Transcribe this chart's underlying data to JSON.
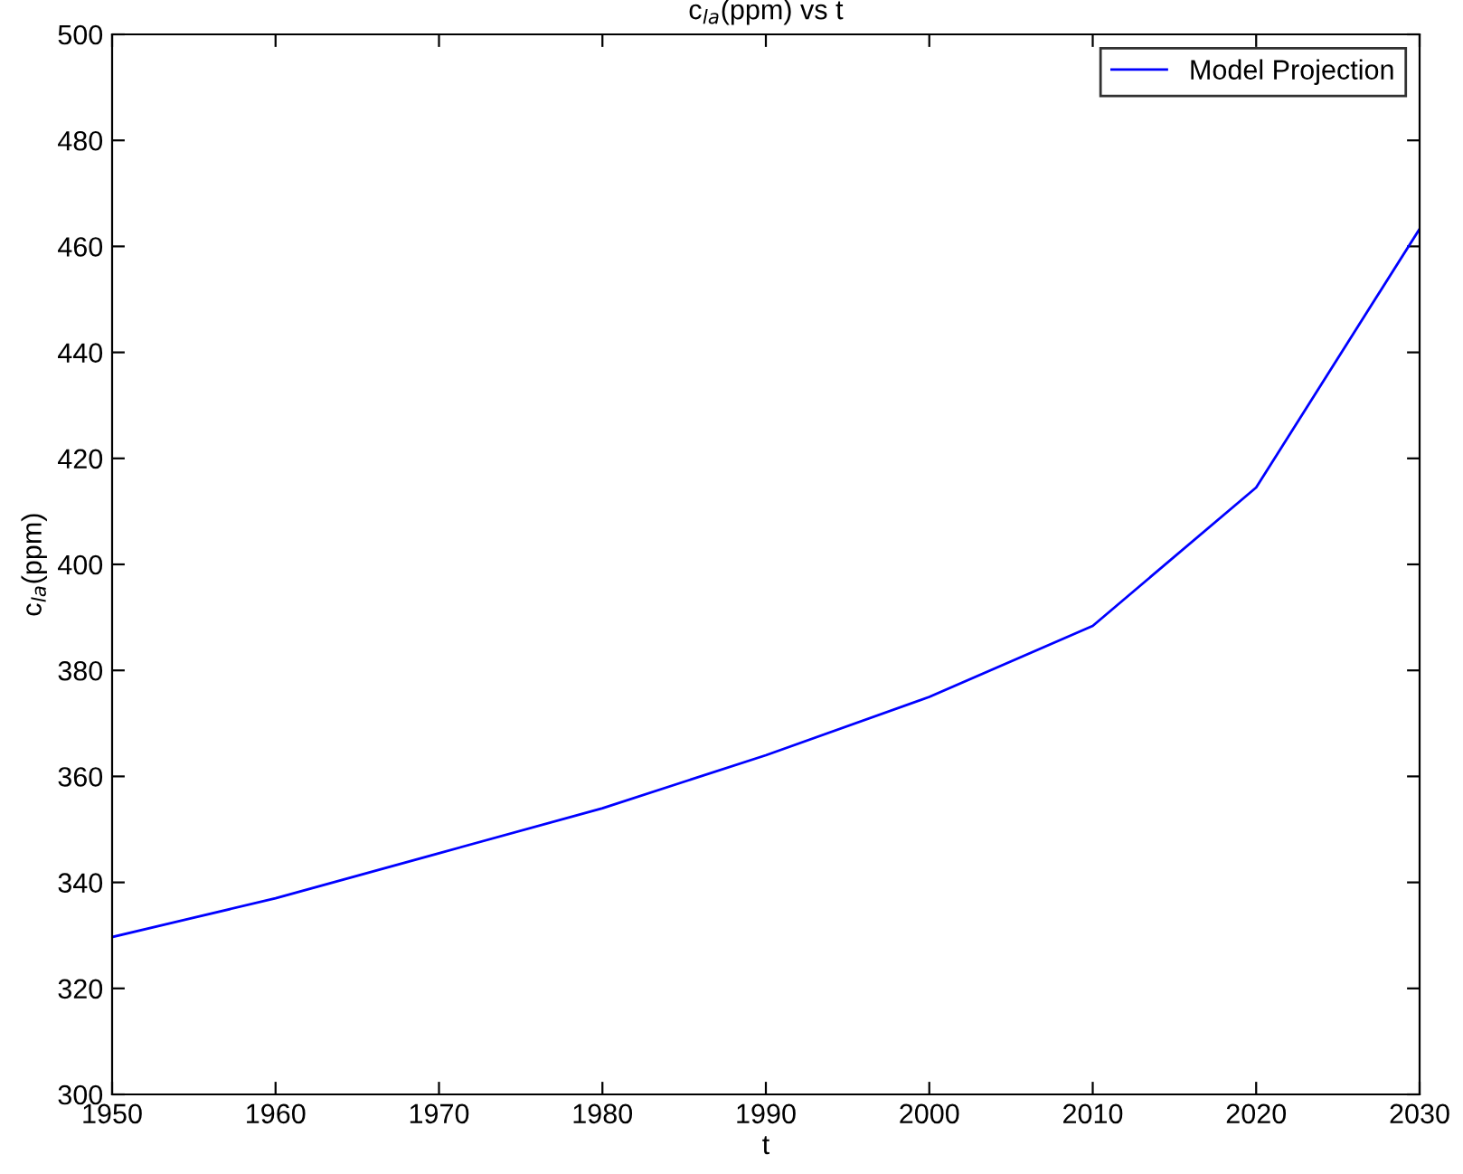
{
  "chart_data": {
    "type": "line",
    "title": "c$_{la}$(ppm) vs t",
    "xlabel": "t",
    "ylabel": "c$_{la}$(ppm)",
    "x": [
      1950,
      1960,
      1970,
      1980,
      1990,
      2000,
      2010,
      2020,
      2030
    ],
    "series": [
      {
        "name": "Model Projection",
        "color": "#0000ff",
        "values": [
          329.7,
          337,
          345.5,
          354,
          364,
          375,
          388.4,
          414.5,
          463.3
        ]
      }
    ],
    "xlim": [
      1950,
      2030
    ],
    "xticks": [
      1950,
      1960,
      1970,
      1980,
      1990,
      2000,
      2010,
      2020,
      2030
    ],
    "ylim": [
      300,
      500
    ],
    "yticks": [
      300,
      320,
      340,
      360,
      380,
      400,
      420,
      440,
      460,
      480,
      500
    ],
    "grid": false,
    "legend": "top right",
    "marker": "none",
    "line_style": "solid"
  }
}
